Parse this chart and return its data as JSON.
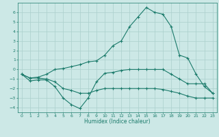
{
  "xlabel": "Humidex (Indice chaleur)",
  "ylabel": "",
  "x": [
    0,
    1,
    2,
    3,
    4,
    5,
    6,
    7,
    8,
    9,
    10,
    11,
    12,
    13,
    14,
    15,
    16,
    17,
    18,
    19,
    20,
    21,
    22,
    23
  ],
  "line1": [
    -0.5,
    -1.2,
    -1.1,
    -1.1,
    -1.8,
    -3.0,
    -3.7,
    -4.1,
    -3.0,
    -1.3,
    -0.4,
    -0.3,
    -0.1,
    0.0,
    0.0,
    0.0,
    0.0,
    0.0,
    -0.5,
    -1.0,
    -1.5,
    -1.5,
    -1.5,
    -2.5
  ],
  "line2": [
    -0.5,
    -0.9,
    -0.9,
    -1.0,
    -1.3,
    -2.0,
    -2.2,
    -2.5,
    -2.5,
    -2.2,
    -2.0,
    -2.0,
    -2.0,
    -2.0,
    -2.0,
    -2.0,
    -2.0,
    -2.1,
    -2.3,
    -2.5,
    -2.8,
    -3.0,
    -3.0,
    -3.0
  ],
  "line3": [
    -0.5,
    -0.9,
    -0.8,
    -0.5,
    0.0,
    0.1,
    0.3,
    0.5,
    0.8,
    0.9,
    1.5,
    2.5,
    3.0,
    4.5,
    5.5,
    6.5,
    6.0,
    5.8,
    4.5,
    1.5,
    1.2,
    -0.5,
    -1.8,
    -2.5
  ],
  "color": "#1a7a6a",
  "bg_color": "#cce8e6",
  "grid_color": "#aacfcc",
  "xlim": [
    -0.5,
    23.5
  ],
  "ylim": [
    -4.5,
    7.0
  ],
  "yticks": [
    -4,
    -3,
    -2,
    -1,
    0,
    1,
    2,
    3,
    4,
    5,
    6
  ],
  "xticks": [
    0,
    1,
    2,
    3,
    4,
    5,
    6,
    7,
    8,
    9,
    10,
    11,
    12,
    13,
    14,
    15,
    16,
    17,
    18,
    19,
    20,
    21,
    22,
    23
  ]
}
